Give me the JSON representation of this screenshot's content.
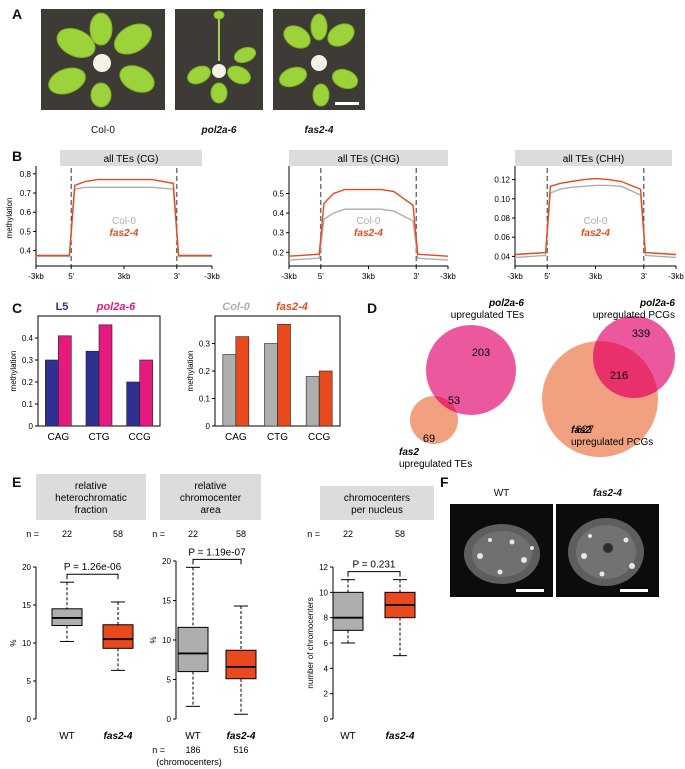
{
  "figure": {
    "panels": {
      "A": "A",
      "B": "B",
      "C": "C",
      "D": "D",
      "E": "E",
      "F": "F"
    }
  },
  "panel_a": {
    "captions": [
      "Col-0",
      "pol2a-6",
      "fas2-4"
    ]
  },
  "colors": {
    "wt": "#aeaeae",
    "fas2": "#e8491d",
    "l5": "#2e3192",
    "pol2a": "#e5197e",
    "header_bg": "#dcdcdc",
    "venn_pol2a": "#ea4a96",
    "venn_fas2": "#f0946e"
  },
  "chart_data": [
    {
      "id": "B1",
      "type": "line",
      "title": "all TEs (CG)",
      "ylabel": "methylation",
      "ylim": [
        0.32,
        0.82
      ],
      "yticks": [
        "0.4",
        "0.5",
        "0.6",
        "0.7",
        "0.8"
      ],
      "ytick_values": [
        0.4,
        0.5,
        0.6,
        0.7,
        0.8
      ],
      "xticks": [
        "-3kb",
        "5'",
        "3kb",
        "3'",
        "-3kb"
      ],
      "series": [
        {
          "name": "Col-0",
          "profile": [
            0.37,
            0.37,
            0.37,
            0.72,
            0.73,
            0.73,
            0.73,
            0.73,
            0.73,
            0.73,
            0.72,
            0.37,
            0.37,
            0.37
          ]
        },
        {
          "name": "fas2-4",
          "profile": [
            0.375,
            0.375,
            0.375,
            0.74,
            0.76,
            0.77,
            0.77,
            0.77,
            0.77,
            0.77,
            0.75,
            0.375,
            0.375,
            0.375
          ]
        }
      ]
    },
    {
      "id": "B2",
      "type": "line",
      "title": "all TEs (CHG)",
      "ylabel": "",
      "ylim": [
        0.13,
        0.62
      ],
      "yticks": [
        "0.2",
        "0.3",
        "0.4",
        "0.5"
      ],
      "ytick_values": [
        0.2,
        0.3,
        0.4,
        0.5
      ],
      "xticks": [
        "-3kb",
        "5'",
        "3kb",
        "3'",
        "-3kb"
      ],
      "series": [
        {
          "name": "Col-0",
          "profile": [
            0.16,
            0.165,
            0.17,
            0.37,
            0.4,
            0.42,
            0.42,
            0.42,
            0.42,
            0.41,
            0.36,
            0.17,
            0.165,
            0.16
          ]
        },
        {
          "name": "fas2-4",
          "profile": [
            0.18,
            0.185,
            0.19,
            0.45,
            0.5,
            0.52,
            0.52,
            0.52,
            0.52,
            0.51,
            0.44,
            0.19,
            0.185,
            0.18
          ]
        }
      ]
    },
    {
      "id": "B3",
      "type": "line",
      "title": "all TEs (CHH)",
      "ylabel": "",
      "ylim": [
        0.03,
        0.13
      ],
      "yticks": [
        "0.04",
        "0.06",
        "0.08",
        "0.10",
        "0.12"
      ],
      "ytick_values": [
        0.04,
        0.06,
        0.08,
        0.1,
        0.12
      ],
      "xticks": [
        "-3kb",
        "5'",
        "3kb",
        "3'",
        "-3kb"
      ],
      "series": [
        {
          "name": "Col-0",
          "profile": [
            0.039,
            0.04,
            0.041,
            0.106,
            0.11,
            0.112,
            0.113,
            0.114,
            0.114,
            0.113,
            0.104,
            0.041,
            0.04,
            0.039
          ]
        },
        {
          "name": "fas2-4",
          "profile": [
            0.042,
            0.043,
            0.044,
            0.113,
            0.116,
            0.118,
            0.12,
            0.121,
            0.12,
            0.118,
            0.11,
            0.044,
            0.043,
            0.042
          ]
        }
      ]
    },
    {
      "id": "C1",
      "type": "bar",
      "ylabel": "methylation",
      "ylim": [
        0,
        0.5
      ],
      "yticks": [
        "0",
        "0.1",
        "0.2",
        "0.3",
        "0.4"
      ],
      "ytick_values": [
        0,
        0.1,
        0.2,
        0.3,
        0.4
      ],
      "categories": [
        "CAG",
        "CTG",
        "CCG"
      ],
      "series": [
        {
          "name": "L5",
          "values": [
            0.3,
            0.34,
            0.2
          ]
        },
        {
          "name": "pol2a-6",
          "values": [
            0.41,
            0.46,
            0.3
          ]
        }
      ]
    },
    {
      "id": "C2",
      "type": "bar",
      "ylabel": "methylation",
      "ylim": [
        0,
        0.4
      ],
      "yticks": [
        "0",
        "0.1",
        "0.2",
        "0.3"
      ],
      "ytick_values": [
        0,
        0.1,
        0.2,
        0.3
      ],
      "categories": [
        "CAG",
        "CTG",
        "CCG"
      ],
      "series": [
        {
          "name": "Col-0",
          "values": [
            0.26,
            0.3,
            0.18
          ]
        },
        {
          "name": "fas2-4",
          "values": [
            0.325,
            0.37,
            0.2
          ]
        }
      ]
    },
    {
      "id": "D1",
      "type": "venn",
      "sets": [
        {
          "label1": "pol2a-6",
          "label2": "upregulated TEs",
          "only": 203
        },
        {
          "label1": "fas2",
          "label2": "upregulated TEs",
          "only": 69
        }
      ],
      "overlap": 53
    },
    {
      "id": "D2",
      "type": "venn",
      "sets": [
        {
          "label1": "pol2a-6",
          "label2": "upregulated PCGs",
          "only": 339
        },
        {
          "label1": "fas2",
          "label2": "upregulated PCGs",
          "only": 627
        }
      ],
      "overlap": 216
    },
    {
      "id": "E1",
      "type": "box",
      "title_lines": [
        "relative",
        "heterochromatic",
        "fraction"
      ],
      "n_label": "n =",
      "n": [
        "22",
        "58"
      ],
      "ylabel": "%",
      "ylim": [
        0,
        20
      ],
      "yticks": [
        "0",
        "5",
        "10",
        "15",
        "20"
      ],
      "ytick_values": [
        0,
        5,
        10,
        15,
        20
      ],
      "categories": [
        "WT",
        "fas2-4"
      ],
      "p_label": "P = 1.26e-06",
      "boxes": [
        {
          "min": 10.2,
          "q1": 12.3,
          "median": 13.3,
          "q3": 14.5,
          "max": 18.0
        },
        {
          "min": 6.4,
          "q1": 9.3,
          "median": 10.5,
          "q3": 12.4,
          "max": 15.4
        }
      ]
    },
    {
      "id": "E2",
      "type": "box",
      "title_lines": [
        "relative",
        "chromocenter",
        "area"
      ],
      "n_label": "n =",
      "n": [
        "22",
        "58"
      ],
      "ylabel": "%",
      "ylim": [
        0,
        20
      ],
      "yticks": [
        "0",
        "5",
        "10",
        "15",
        "20"
      ],
      "ytick_values": [
        0,
        5,
        10,
        15,
        20
      ],
      "categories": [
        "WT",
        "fas2-4"
      ],
      "p_label": "P = 1.19e-07",
      "boxes": [
        {
          "min": 1.6,
          "q1": 6.0,
          "median": 8.3,
          "q3": 11.6,
          "max": 19.2
        },
        {
          "min": 0.6,
          "q1": 5.1,
          "median": 6.6,
          "q3": 8.7,
          "max": 14.3
        }
      ],
      "bottom_n_label": "n =",
      "bottom_n": [
        "186",
        "516"
      ],
      "bottom_note": "(chromocenters)"
    },
    {
      "id": "E3",
      "type": "box",
      "title_lines": [
        "chromocenters",
        "per nucleus"
      ],
      "n_label": "n =",
      "n": [
        "22",
        "58"
      ],
      "ylabel": "number of chromocenters",
      "ylim": [
        0,
        12
      ],
      "yticks": [
        "0",
        "2",
        "4",
        "6",
        "8",
        "10",
        "12"
      ],
      "ytick_values": [
        0,
        2,
        4,
        6,
        8,
        10,
        12
      ],
      "categories": [
        "WT",
        "fas2-4"
      ],
      "p_label": "P = 0.231",
      "boxes": [
        {
          "min": 6,
          "q1": 7,
          "median": 8,
          "q3": 10,
          "max": 11
        },
        {
          "min": 5,
          "q1": 8,
          "median": 9,
          "q3": 10,
          "max": 11
        }
      ]
    }
  ],
  "panel_f": {
    "captions": [
      "WT",
      "fas2-4"
    ]
  }
}
